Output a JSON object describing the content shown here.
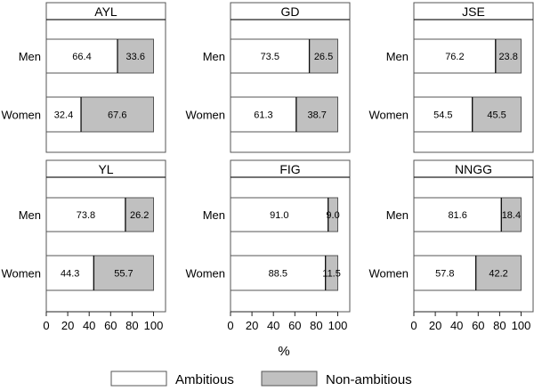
{
  "chart_data": {
    "type": "bar",
    "orientation": "horizontal",
    "stacked": true,
    "categories": [
      "Men",
      "Women"
    ],
    "xlabel": "%",
    "xlim": [
      0,
      100
    ],
    "xticks": [
      "0",
      "20",
      "40",
      "60",
      "80",
      "100"
    ],
    "grid": false,
    "legend_position": "bottom",
    "legend": [
      {
        "name": "Ambitious",
        "color": "#ffffff"
      },
      {
        "name": "Non-ambitious",
        "color": "#c0c0c0"
      }
    ],
    "panels": [
      {
        "title": "AYL",
        "ambitious": [
          "66.4",
          "32.4"
        ],
        "non_ambitious": [
          "33.6",
          "67.6"
        ]
      },
      {
        "title": "GD",
        "ambitious": [
          "73.5",
          "61.3"
        ],
        "non_ambitious": [
          "26.5",
          "38.7"
        ]
      },
      {
        "title": "JSE",
        "ambitious": [
          "76.2",
          "54.5"
        ],
        "non_ambitious": [
          "23.8",
          "45.5"
        ]
      },
      {
        "title": "YL",
        "ambitious": [
          "73.8",
          "44.3"
        ],
        "non_ambitious": [
          "26.2",
          "55.7"
        ]
      },
      {
        "title": "FIG",
        "ambitious": [
          "91.0",
          "88.5"
        ],
        "non_ambitious": [
          "9.0",
          "11.5"
        ]
      },
      {
        "title": "NNGG",
        "ambitious": [
          "81.6",
          "57.8"
        ],
        "non_ambitious": [
          "18.4",
          "42.2"
        ]
      }
    ]
  }
}
